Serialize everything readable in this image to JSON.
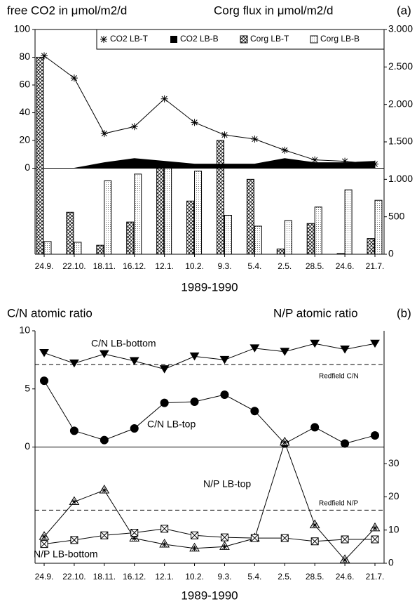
{
  "chart_data": [
    {
      "type": "combo",
      "title_left": "free CO2 in μmol/m2/d",
      "title_right": "Corg flux in μmol/m2/d",
      "panel_label": "(a)",
      "x_label": "1989-1990",
      "categories": [
        "24.9.",
        "22.10.",
        "18.11.",
        "16.12.",
        "12.1.",
        "10.2.",
        "9.3.",
        "5.4.",
        "2.5.",
        "28.5.",
        "24.6.",
        "21.7."
      ],
      "ylim": [
        -62,
        100
      ],
      "yticks": [
        0,
        20,
        40,
        60,
        80,
        100
      ],
      "y2lim": [
        0,
        3000
      ],
      "y2ticks": [
        {
          "value": 3000,
          "label": "3.000"
        },
        {
          "value": 2500,
          "label": "2.500"
        },
        {
          "value": 2000,
          "label": "2.000"
        },
        {
          "value": 1500,
          "label": "1.500"
        },
        {
          "value": 1000,
          "label": "1.000"
        },
        500,
        0
      ],
      "legend": "top-right",
      "series": [
        {
          "name": "CO2 LB-T",
          "type": "line",
          "marker": "star",
          "color": "#000000",
          "values": [
            81,
            65,
            25,
            30,
            50,
            33,
            24,
            21,
            13,
            6,
            5,
            3
          ]
        },
        {
          "name": "CO2 LB-B",
          "type": "area",
          "color": "#000000",
          "values": [
            0,
            0,
            4,
            7,
            5,
            3,
            3,
            3,
            7,
            4,
            4,
            5
          ]
        },
        {
          "name": "Corg LB-T",
          "type": "bar",
          "pattern": "crosshatch",
          "axis": "y2",
          "color": "#000000",
          "values": [
            2630,
            560,
            120,
            430,
            1220,
            710,
            1520,
            1000,
            70,
            410,
            10,
            210
          ]
        },
        {
          "name": "Corg LB-B",
          "type": "bar",
          "pattern": "dots",
          "axis": "y2",
          "color": "#000000",
          "values": [
            170,
            160,
            980,
            1070,
            1210,
            1110,
            520,
            375,
            450,
            630,
            860,
            720
          ]
        }
      ]
    },
    {
      "type": "line",
      "title_left": "C/N atomic ratio",
      "title_right": "N/P atomic ratio",
      "panel_label": "(b)",
      "x_label": "1989-1990",
      "categories": [
        "24.9.",
        "22.10.",
        "18.11.",
        "16.12.",
        "12.1.",
        "10.2.",
        "9.3.",
        "5.4.",
        "2.5.",
        "28.5.",
        "24.6.",
        "21.7."
      ],
      "ylim": [
        -10,
        10
      ],
      "yticks": [
        0,
        5,
        10
      ],
      "y2lim": [
        0,
        70
      ],
      "y2ticks": [
        0,
        10,
        20,
        30
      ],
      "series": [
        {
          "name": "C/N LB-bottom",
          "marker": "triangle-down",
          "color": "#000000",
          "values": [
            8.1,
            7.2,
            8.0,
            7.4,
            6.7,
            7.8,
            7.5,
            8.5,
            8.2,
            8.9,
            8.4,
            8.9
          ]
        },
        {
          "name": "C/N LB-top",
          "marker": "circle",
          "color": "#000000",
          "values": [
            5.7,
            1.4,
            0.6,
            1.6,
            3.8,
            3.9,
            4.5,
            3.1,
            0.3,
            1.7,
            0.3,
            1.0
          ]
        },
        {
          "name": "N/P LB-top",
          "marker": "star-triangle",
          "axis": "y2",
          "color": "#000000",
          "values": [
            8,
            18.5,
            22,
            7.5,
            5.7,
            4.5,
            5,
            7.5,
            36.4,
            11.5,
            1,
            10.6
          ]
        },
        {
          "name": "N/P LB-bottom",
          "marker": "box-x",
          "axis": "y2",
          "color": "#000000",
          "values": [
            5.8,
            7,
            8.4,
            9.2,
            10.4,
            8.4,
            7.8,
            7.6,
            7.6,
            6.6,
            7.2,
            7.2
          ]
        }
      ],
      "reference_lines": [
        {
          "label": "Redfield C/N",
          "value": 7.1
        },
        {
          "label": "Redfield N/P",
          "value": 16,
          "axis": "y2"
        }
      ]
    }
  ]
}
